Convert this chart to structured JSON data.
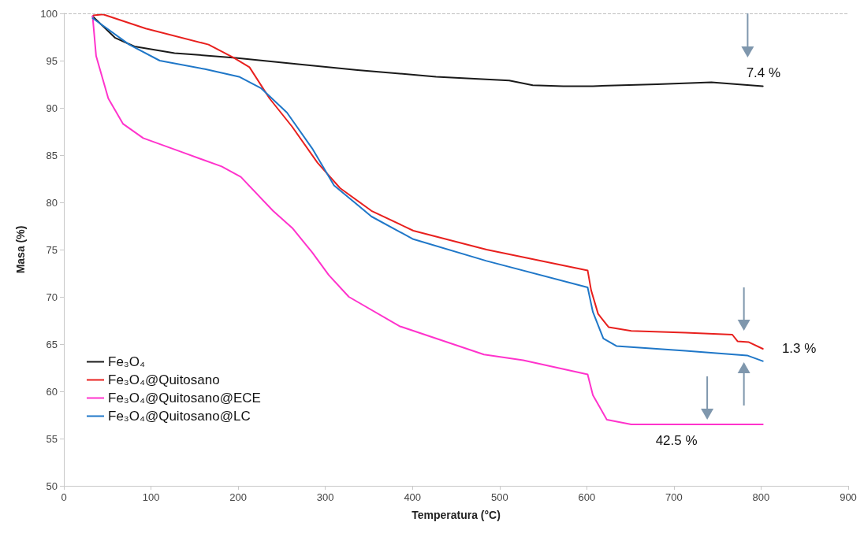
{
  "chart_data": {
    "type": "line",
    "xlabel": "Temperatura (°C)",
    "ylabel": "Masa (%)",
    "xlim": [
      0,
      900
    ],
    "xticks": [
      0,
      100,
      200,
      300,
      400,
      500,
      600,
      700,
      800,
      900
    ],
    "ylim": [
      50,
      100
    ],
    "yticks": [
      50,
      55,
      60,
      65,
      70,
      75,
      80,
      85,
      90,
      95,
      100
    ],
    "grid": false,
    "legend": "bottom left",
    "marker": "none",
    "line_style": "solid",
    "ref_lines": [
      {
        "axis": "y",
        "value": 100,
        "color": "#bfbfbf",
        "line_style": "dashed"
      }
    ],
    "annotations": [
      {
        "text": "7.4 %",
        "x": 790,
        "y": 92.5
      },
      {
        "text": "1.3 %",
        "x": 802,
        "y": 64.5
      },
      {
        "text": "42.5 %",
        "x": 740,
        "y": 56.5
      }
    ],
    "series": [
      {
        "name": "Fe₃O₄",
        "color": "#1a1a1a",
        "x": [
          33,
          59,
          81,
          127,
          197,
          271,
          337,
          427,
          511,
          538,
          573,
          607,
          681,
          743,
          802
        ],
        "values": [
          99.7,
          97.4,
          96.5,
          95.8,
          95.3,
          94.6,
          94,
          93.3,
          92.9,
          92.4,
          92.3,
          92.3,
          92.5,
          92.7,
          92.3
        ]
      },
      {
        "name": "Fe₃O₄@Quitosano",
        "color": "#e8201e",
        "x": [
          34,
          45,
          94,
          166,
          195,
          213,
          236,
          262,
          291,
          317,
          353,
          401,
          485,
          601,
          605,
          613,
          625,
          651,
          713,
          767,
          773,
          786,
          802
        ],
        "values": [
          99.8,
          99.9,
          98.4,
          96.7,
          95.3,
          94.3,
          91,
          88,
          84.2,
          81.5,
          79.1,
          77,
          75,
          72.8,
          70.7,
          68.2,
          66.8,
          66.4,
          66.2,
          66,
          65.3,
          65.2,
          64.5
        ]
      },
      {
        "name": "Fe₃O₄@Quitosano@ECE",
        "color": "#ff33cc",
        "x": [
          33,
          37,
          51,
          68,
          91,
          136,
          181,
          203,
          240,
          262,
          285,
          304,
          327,
          385,
          482,
          527,
          601,
          607,
          623,
          651,
          802
        ],
        "values": [
          99.7,
          95.5,
          91,
          88.3,
          86.8,
          85.3,
          83.8,
          82.7,
          79.1,
          77.3,
          74.7,
          72.3,
          70,
          66.9,
          63.9,
          63.3,
          61.8,
          59.6,
          57,
          56.5,
          56.5
        ]
      },
      {
        "name": "Fe₃O₄@Quitosano@LC",
        "color": "#1f77c8",
        "x": [
          33,
          75,
          110,
          162,
          201,
          226,
          256,
          285,
          310,
          353,
          401,
          485,
          601,
          607,
          619,
          634,
          713,
          784,
          802
        ],
        "values": [
          99.5,
          96.7,
          95,
          94.1,
          93.3,
          92.1,
          89.5,
          85.7,
          81.8,
          78.5,
          76.1,
          73.8,
          71,
          68.4,
          65.6,
          64.8,
          64.3,
          63.8,
          63.2
        ]
      }
    ]
  }
}
